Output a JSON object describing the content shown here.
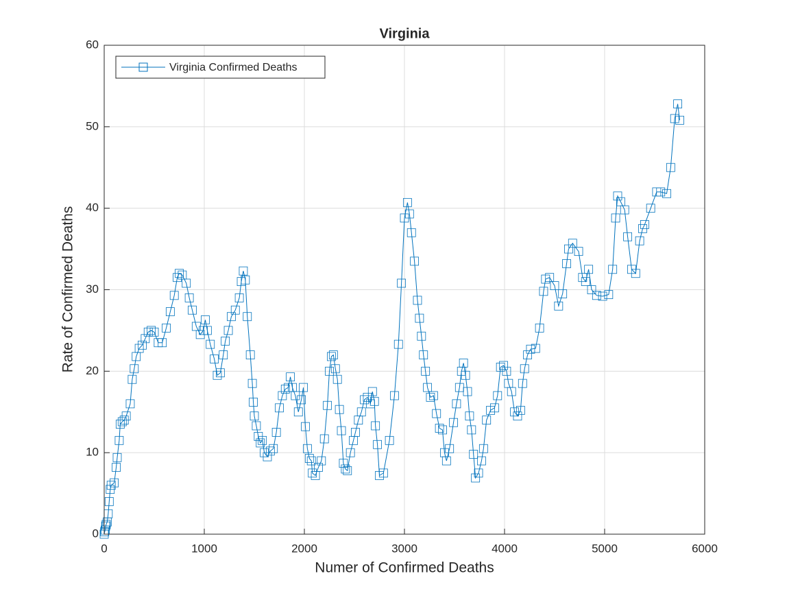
{
  "chart_data": {
    "type": "line",
    "title": "Virginia",
    "xlabel": "Numer of Confirmed Deaths",
    "ylabel": "Rate of Confirmed Deaths",
    "xlim": [
      0,
      6000
    ],
    "xticks": [
      0,
      1000,
      2000,
      3000,
      4000,
      5000,
      6000
    ],
    "ylim": [
      0,
      60
    ],
    "yticks": [
      0,
      10,
      20,
      30,
      40,
      50,
      60
    ],
    "grid": true,
    "legend": "upper-left",
    "series": [
      {
        "name": "Virginia Confirmed Deaths",
        "color": "#0072bd",
        "marker": "square",
        "x": [
          0,
          5,
          10,
          15,
          20,
          30,
          40,
          50,
          60,
          70,
          100,
          120,
          130,
          150,
          160,
          180,
          200,
          220,
          260,
          280,
          300,
          320,
          350,
          380,
          410,
          440,
          470,
          500,
          540,
          580,
          620,
          660,
          700,
          730,
          750,
          780,
          820,
          850,
          880,
          920,
          960,
          990,
          1010,
          1030,
          1060,
          1100,
          1130,
          1160,
          1190,
          1210,
          1240,
          1270,
          1310,
          1350,
          1370,
          1390,
          1410,
          1430,
          1460,
          1480,
          1490,
          1500,
          1520,
          1540,
          1560,
          1580,
          1600,
          1630,
          1660,
          1690,
          1720,
          1750,
          1780,
          1810,
          1840,
          1860,
          1880,
          1910,
          1940,
          1970,
          1990,
          2010,
          2030,
          2050,
          2070,
          2080,
          2110,
          2140,
          2170,
          2200,
          2230,
          2250,
          2270,
          2290,
          2310,
          2330,
          2350,
          2370,
          2390,
          2410,
          2430,
          2460,
          2490,
          2510,
          2540,
          2570,
          2600,
          2630,
          2660,
          2680,
          2700,
          2710,
          2730,
          2750,
          2790,
          2850,
          2900,
          2940,
          2970,
          3000,
          3030,
          3050,
          3070,
          3100,
          3130,
          3150,
          3170,
          3190,
          3210,
          3230,
          3260,
          3290,
          3320,
          3350,
          3380,
          3400,
          3420,
          3450,
          3490,
          3520,
          3550,
          3570,
          3590,
          3610,
          3630,
          3650,
          3670,
          3690,
          3710,
          3740,
          3770,
          3790,
          3820,
          3860,
          3900,
          3930,
          3960,
          3990,
          4020,
          4040,
          4070,
          4100,
          4130,
          4160,
          4180,
          4200,
          4230,
          4260,
          4310,
          4350,
          4390,
          4410,
          4450,
          4500,
          4540,
          4580,
          4620,
          4640,
          4680,
          4740,
          4780,
          4810,
          4840,
          4870,
          4920,
          4980,
          5040,
          5080,
          5110,
          5130,
          5160,
          5200,
          5230,
          5270,
          5310,
          5350,
          5380,
          5400,
          5460,
          5520,
          5560,
          5620,
          5660,
          5700,
          5730,
          5750
        ],
        "values": [
          0,
          0.3,
          0.5,
          1,
          1.2,
          1.5,
          2.5,
          4,
          5.5,
          6,
          6.3,
          8.2,
          9.4,
          11.5,
          13.5,
          13.8,
          14,
          14.5,
          16,
          19,
          20.3,
          21.8,
          22.8,
          23.2,
          24,
          24.8,
          25,
          24.8,
          23.5,
          23.5,
          25.3,
          27.3,
          29.3,
          31.5,
          32,
          31.8,
          30.8,
          29,
          27.5,
          25.5,
          24.5,
          25,
          26.3,
          25,
          23.3,
          21.5,
          19.5,
          19.8,
          22,
          23.7,
          25,
          26.7,
          27.5,
          29,
          31,
          32.3,
          31.2,
          26.7,
          22,
          18.5,
          16.2,
          14.5,
          13.3,
          12,
          11.2,
          11.5,
          10,
          9.5,
          10.2,
          10.5,
          12.5,
          15.5,
          17,
          17.8,
          18,
          19.3,
          18,
          17,
          15,
          16.5,
          18,
          13.2,
          10.5,
          9.3,
          9,
          7.5,
          7.2,
          8.2,
          9,
          11.7,
          15.8,
          20,
          21.8,
          22,
          20.3,
          19,
          15.3,
          12.7,
          8.7,
          8,
          7.8,
          10,
          11.5,
          12.5,
          14,
          15,
          16.5,
          16.8,
          16,
          17.5,
          16.3,
          13.3,
          11,
          7.2,
          7.5,
          11.5,
          17,
          23.3,
          30.8,
          38.8,
          40.7,
          39.3,
          37,
          33.5,
          28.7,
          26.5,
          24.3,
          22,
          20,
          18,
          16.8,
          17,
          14.8,
          13,
          12.8,
          10,
          9,
          10.5,
          13.7,
          16,
          18,
          20,
          21,
          19.5,
          17.5,
          14.5,
          12.8,
          9.8,
          6.9,
          7.5,
          9,
          10.5,
          14,
          15.2,
          15.5,
          17,
          20.5,
          20.7,
          20,
          18.5,
          17.5,
          15,
          14.5,
          15.2,
          18.5,
          20.3,
          22,
          22.7,
          22.8,
          25.3,
          29.8,
          31.3,
          31.5,
          30.5,
          28,
          29.5,
          33.2,
          35,
          35.7,
          34.7,
          31.5,
          31,
          32.5,
          30,
          29.3,
          29.2,
          29.4,
          32.5,
          38.8,
          41.5,
          40.8,
          39.8,
          36.5,
          32.5,
          32,
          36,
          37.5,
          38,
          40,
          42,
          42,
          41.8,
          45,
          51,
          52.8,
          50.8
        ]
      }
    ]
  }
}
